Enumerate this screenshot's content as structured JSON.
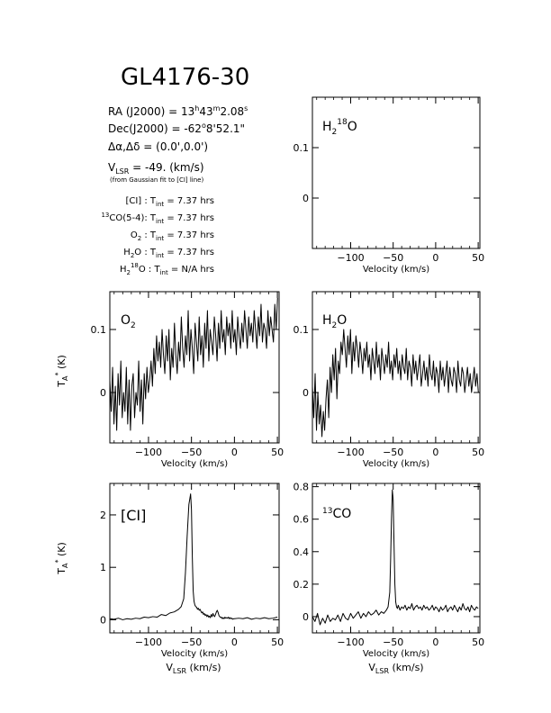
{
  "header": {
    "title": "GL4176-30",
    "ra": "RA (J2000) =  13h43m2.08s",
    "dec": "Dec(J2000) =  -62°8'52.1\"",
    "offset": "Δα,Δδ =  (0.0',0.0')",
    "vlsr": "VLSR  = -49. (km/s)",
    "vlsr_note": "(from Gaussian fit to [CI] line)",
    "integrations": [
      "[CI] :  Tint = 7.37 hrs",
      "13CO(5-4):  Tint = 7.37 hrs",
      "O2 :  Tint = 7.37 hrs",
      "H2O :  Tint = 7.37 hrs",
      "H2 18O :  Tint = N/A  hrs"
    ]
  },
  "colors": {
    "line": "#000000",
    "background": "#ffffff"
  },
  "chart_data": [
    {
      "id": "h218o",
      "type": "line",
      "label": "H2 18O",
      "xlabel": "Velocity (km/s)",
      "ylabel": "",
      "xlim": [
        -145,
        52
      ],
      "ylim": [
        -0.1,
        0.2
      ],
      "xticks": [
        -100,
        -50,
        0,
        50
      ],
      "yticks": [
        0,
        0.1
      ],
      "yticklabels": [
        "0",
        "0.1"
      ],
      "grid": false,
      "has_data": false,
      "series": []
    },
    {
      "id": "o2",
      "type": "line",
      "label": "O2",
      "xlabel": "Velocity (km/s)",
      "ylabel": "TA* (K)",
      "xlim": [
        -145,
        52
      ],
      "ylim": [
        -0.08,
        0.16
      ],
      "xticks": [
        -100,
        -50,
        0,
        50
      ],
      "yticks": [
        0,
        0.1
      ],
      "yticklabels": [
        "0",
        "0.1"
      ],
      "grid": false,
      "has_data": true,
      "series": [
        {
          "x0": -145,
          "dx": 1.6,
          "values": [
            0.02,
            -0.03,
            0.04,
            -0.05,
            0.01,
            -0.06,
            0.03,
            -0.02,
            0.05,
            -0.04,
            0,
            -0.03,
            0.04,
            -0.05,
            0.02,
            -0.06,
            0.01,
            0.03,
            -0.04,
            0,
            -0.02,
            0.05,
            -0.03,
            0.02,
            -0.05,
            0.03,
            -0.01,
            0.04,
            0,
            0.02,
            0.05,
            0.01,
            0.07,
            0.03,
            0.09,
            0.05,
            0.08,
            0.04,
            0.1,
            0.06,
            0.03,
            0.09,
            0.05,
            0.1,
            0.02,
            0.07,
            0.04,
            0.11,
            0.06,
            0.03,
            0.08,
            0.05,
            0.12,
            0.07,
            0.04,
            0.09,
            0.06,
            0.13,
            0.05,
            0.1,
            0.07,
            0.03,
            0.11,
            0.08,
            0.05,
            0.12,
            0.06,
            0.09,
            0.04,
            0.11,
            0.07,
            0.13,
            0.05,
            0.1,
            0.08,
            0.06,
            0.12,
            0.09,
            0.05,
            0.11,
            0.07,
            0.13,
            0.08,
            0.1,
            0.06,
            0.12,
            0.09,
            0.11,
            0.07,
            0.13,
            0.08,
            0.1,
            0.06,
            0.12,
            0.09,
            0.07,
            0.11,
            0.08,
            0.13,
            0.1,
            0.07,
            0.12,
            0.09,
            0.11,
            0.08,
            0.13,
            0.1,
            0.07,
            0.12,
            0.09,
            0.14,
            0.08,
            0.11,
            0.1,
            0.07,
            0.13,
            0.09,
            0.12,
            0.1,
            0.08,
            0.14,
            0.1,
            0.15
          ]
        }
      ]
    },
    {
      "id": "h2o",
      "type": "line",
      "label": "H2O",
      "xlabel": "Velocity (km/s)",
      "ylabel": "",
      "xlim": [
        -145,
        52
      ],
      "ylim": [
        -0.08,
        0.16
      ],
      "xticks": [
        -100,
        -50,
        0,
        50
      ],
      "yticks": [
        0,
        0.1
      ],
      "yticklabels": [
        "0",
        "0.1"
      ],
      "grid": false,
      "has_data": true,
      "series": [
        {
          "x0": -145,
          "dx": 1.6,
          "values": [
            0.01,
            -0.04,
            0.03,
            -0.06,
            0,
            -0.05,
            -0.02,
            -0.07,
            -0.03,
            -0.06,
            -0.01,
            0.02,
            -0.04,
            0.04,
            0,
            0.06,
            0.02,
            0.07,
            -0.01,
            0.05,
            0.03,
            0.08,
            0.06,
            0.1,
            0.07,
            0.04,
            0.09,
            0.06,
            0.1,
            0.03,
            0.08,
            0.05,
            0.09,
            0.07,
            0.04,
            0.08,
            0.06,
            0.03,
            0.07,
            0.05,
            0.08,
            0.04,
            0.06,
            0.02,
            0.07,
            0.05,
            0.03,
            0.08,
            0.04,
            0.06,
            0.02,
            0.07,
            0.05,
            0.03,
            0.06,
            0.04,
            0.08,
            0.03,
            0.05,
            0.02,
            0.06,
            0.04,
            0.07,
            0.03,
            0.05,
            0.02,
            0.06,
            0.04,
            0.03,
            0.07,
            0.02,
            0.05,
            0.04,
            0.01,
            0.06,
            0.03,
            0.05,
            0.02,
            0.04,
            0.06,
            0.01,
            0.03,
            0.05,
            0.02,
            0.04,
            0.01,
            0.06,
            0.03,
            0.02,
            0.05,
            0.01,
            0.04,
            0.03,
            0,
            0.05,
            0.02,
            0.04,
            0.01,
            0.03,
            0.05,
            0,
            0.04,
            0.02,
            0.01,
            0.04,
            0.03,
            0,
            0.05,
            0.02,
            0.01,
            0.04,
            0.03,
            0,
            0.02,
            0.04,
            0.01,
            0.03,
            0,
            0.02,
            0.04,
            0.01,
            0.03,
            0
          ]
        }
      ]
    },
    {
      "id": "ci",
      "type": "line",
      "label": "[CI]",
      "xlabel": "Velocity (km/s)",
      "ylabel": "TA* (K)",
      "xlim": [
        -145,
        52
      ],
      "ylim": [
        -0.25,
        2.6
      ],
      "xticks": [
        -100,
        -50,
        0,
        50
      ],
      "yticks": [
        0,
        1,
        2
      ],
      "yticklabels": [
        "0",
        "1",
        "2"
      ],
      "grid": false,
      "has_data": true,
      "series": [
        {
          "x": [
            -145,
            -140,
            -135,
            -130,
            -125,
            -120,
            -115,
            -110,
            -105,
            -100,
            -95,
            -90,
            -85,
            -80,
            -75,
            -70,
            -65,
            -62,
            -59,
            -57,
            -55,
            -53,
            -51,
            -50,
            -49,
            -48,
            -47,
            -46,
            -45,
            -44,
            -43,
            -42,
            -41,
            -40,
            -39,
            -38,
            -37,
            -36,
            -35,
            -34,
            -33,
            -32,
            -31,
            -30,
            -29,
            -28,
            -27,
            -26,
            -25,
            -24,
            -23,
            -22,
            -21,
            -20,
            -19,
            -18,
            -17,
            -16,
            -15,
            -14,
            -13,
            -12,
            -11,
            -10,
            -9,
            -8,
            -7,
            -6,
            -5,
            -4,
            -3,
            -2,
            -1,
            0,
            5,
            10,
            15,
            20,
            25,
            30,
            35,
            40,
            45,
            50
          ],
          "values": [
            0.02,
            0.01,
            0.03,
            0,
            0.02,
            0.01,
            0.03,
            0.02,
            0.05,
            0.04,
            0.06,
            0.05,
            0.1,
            0.08,
            0.13,
            0.15,
            0.2,
            0.25,
            0.4,
            0.9,
            1.6,
            2.2,
            2.4,
            2.1,
            1.2,
            0.55,
            0.35,
            0.28,
            0.25,
            0.24,
            0.2,
            0.22,
            0.18,
            0.2,
            0.16,
            0.13,
            0.15,
            0.1,
            0.12,
            0.08,
            0.1,
            0.06,
            0.09,
            0.05,
            0.07,
            0.04,
            0.1,
            0.06,
            0.12,
            0.08,
            0.06,
            0.1,
            0.15,
            0.18,
            0.14,
            0.08,
            0.06,
            0.04,
            0.05,
            0.02,
            0.04,
            0.02,
            0.05,
            0.03,
            0.04,
            0.03,
            0.05,
            0.02,
            0.04,
            0.02,
            0.03,
            0.01,
            0.02,
            0.02,
            0.03,
            0.02,
            0.04,
            0.01,
            0.03,
            0.02,
            0.04,
            0.02,
            0.03,
            0.05
          ]
        }
      ]
    },
    {
      "id": "co13",
      "type": "line",
      "label": "13CO",
      "xlabel": "Velocity (km/s)",
      "ylabel": "",
      "xlim": [
        -145,
        52
      ],
      "ylim": [
        -0.1,
        0.82
      ],
      "xticks": [
        -100,
        -50,
        0,
        50
      ],
      "yticks": [
        0,
        0.2,
        0.4,
        0.6,
        0.8
      ],
      "yticklabels": [
        "0",
        "0.2",
        "0.4",
        "0.6",
        "0.8"
      ],
      "grid": false,
      "has_data": true,
      "series": [
        {
          "x": [
            -145,
            -142,
            -139,
            -136,
            -133,
            -130,
            -127,
            -124,
            -121,
            -118,
            -115,
            -112,
            -109,
            -106,
            -103,
            -100,
            -97,
            -94,
            -91,
            -88,
            -85,
            -82,
            -79,
            -76,
            -73,
            -70,
            -67,
            -64,
            -61,
            -58,
            -56,
            -54,
            -53,
            -52,
            -51,
            -50,
            -49,
            -48,
            -47,
            -46,
            -45,
            -44,
            -42,
            -40,
            -38,
            -36,
            -34,
            -32,
            -30,
            -28,
            -26,
            -24,
            -22,
            -20,
            -18,
            -16,
            -14,
            -12,
            -10,
            -8,
            -6,
            -4,
            -2,
            0,
            2,
            4,
            6,
            8,
            10,
            12,
            14,
            16,
            18,
            20,
            22,
            24,
            26,
            28,
            30,
            32,
            34,
            36,
            38,
            40,
            42,
            44,
            46,
            48,
            50
          ],
          "values": [
            0,
            -0.03,
            0.02,
            -0.05,
            -0.01,
            -0.04,
            0.01,
            -0.03,
            -0.01,
            -0.02,
            0.01,
            -0.03,
            0.02,
            -0.01,
            -0.02,
            0.02,
            -0.01,
            0.01,
            0.03,
            -0.01,
            0.02,
            0,
            0.03,
            0.01,
            0.02,
            0.04,
            0.01,
            0.03,
            0.02,
            0.04,
            0.06,
            0.15,
            0.35,
            0.6,
            0.78,
            0.72,
            0.45,
            0.2,
            0.09,
            0.06,
            0.05,
            0.07,
            0.04,
            0.06,
            0.05,
            0.07,
            0.04,
            0.06,
            0.05,
            0.08,
            0.04,
            0.06,
            0.07,
            0.05,
            0.06,
            0.04,
            0.07,
            0.05,
            0.06,
            0.04,
            0.05,
            0.07,
            0.04,
            0.06,
            0.05,
            0.03,
            0.06,
            0.04,
            0.05,
            0.07,
            0.03,
            0.05,
            0.06,
            0.04,
            0.07,
            0.05,
            0.03,
            0.06,
            0.04,
            0.08,
            0.05,
            0.04,
            0.06,
            0.03,
            0.07,
            0.05,
            0.04,
            0.06,
            0.05
          ]
        }
      ]
    }
  ]
}
